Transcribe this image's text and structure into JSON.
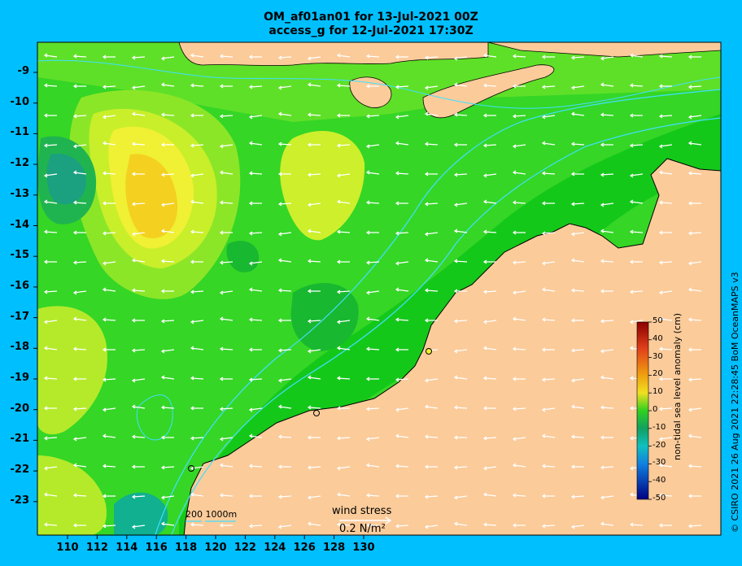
{
  "title_line1": "OM_af01an01 for 13-Jul-2021 00Z",
  "title_line2": "access_g for 12-Jul-2021 17:30Z",
  "credit": "© CSIRO 2021   26 Aug 2021 22:28:45 BoM OceanMAPS v3",
  "lon_ticks": [
    "110",
    "112",
    "114",
    "116",
    "118",
    "120",
    "122",
    "124",
    "126",
    "128",
    "130"
  ],
  "lat_ticks": [
    "-9",
    "-10",
    "-11",
    "-12",
    "-13",
    "-14",
    "-15",
    "-16",
    "-17",
    "-18",
    "-19",
    "-20",
    "-21",
    "-22",
    "-23"
  ],
  "colorbar": {
    "label": "non-tidal sea level anomaly (cm)",
    "ticks": [
      "50",
      "40",
      "30",
      "20",
      "10",
      "0",
      "-10",
      "-20",
      "-30",
      "-40",
      "-50"
    ]
  },
  "wind_stress": {
    "label": "wind stress",
    "unit": "0.2 N/m²"
  },
  "bathymetry_scale": {
    "label": "200  1000m"
  },
  "colors": {
    "background": "#00bfff",
    "land": "#fbcb9a",
    "ocean_base": "#2ed22e",
    "contour": "#40e0ff"
  }
}
